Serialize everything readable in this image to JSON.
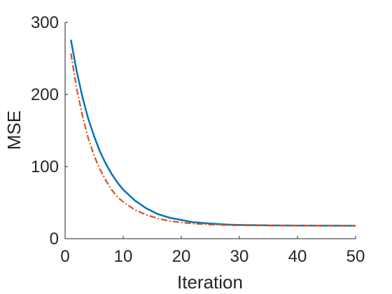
{
  "chart_data": {
    "type": "line",
    "title": "",
    "xlabel": "Iteration",
    "ylabel": "MSE",
    "xlim": [
      0,
      50
    ],
    "ylim": [
      0,
      300
    ],
    "xticks": [
      "0",
      "10",
      "20",
      "30",
      "40",
      "50"
    ],
    "yticks": [
      "0",
      "100",
      "200",
      "300"
    ],
    "grid": false,
    "legend": "none",
    "x": [
      1,
      2,
      3,
      4,
      5,
      6,
      7,
      8,
      9,
      10,
      12,
      14,
      16,
      18,
      20,
      22,
      25,
      28,
      30,
      35,
      40,
      45,
      50
    ],
    "series": [
      {
        "color": "#0072BD",
        "line_style": "solid",
        "values": [
          276,
          232,
          196,
          166,
          142,
          121,
          104,
          90,
          78,
          68,
          53,
          42,
          34,
          29,
          26,
          23,
          21,
          19.5,
          19,
          18.5,
          18.2,
          18.1,
          18
        ]
      },
      {
        "color": "#D95319",
        "line_style": "dash-dot",
        "values": [
          257,
          208,
          170,
          139,
          115,
          96,
          81,
          68,
          58,
          51,
          40,
          33,
          28,
          24.5,
          22.5,
          21,
          19.5,
          18.8,
          18.5,
          18.2,
          18.1,
          18,
          18
        ]
      }
    ]
  }
}
